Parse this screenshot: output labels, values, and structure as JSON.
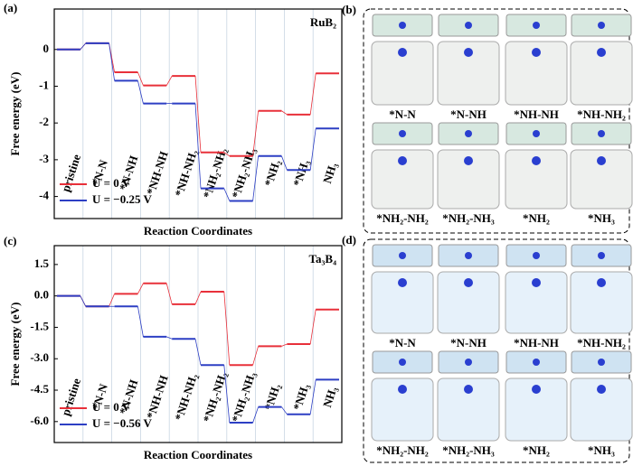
{
  "chart_data": [
    {
      "type": "step",
      "panel_label": "(a)",
      "annotation": "RuB₂",
      "xlabel": "Reaction Coordinates",
      "ylabel": "Free energy (eV)",
      "categories": [
        "pristine",
        "*N-N",
        "*N-NH",
        "*NH-NH",
        "*NH-NH₂",
        "*NH₂-NH₂",
        "*NH₂-NH₃",
        "*NH₂",
        "*NH₃",
        "NH₃"
      ],
      "series": [
        {
          "name": "U = 0 V",
          "color": "#e8303a",
          "values": [
            0,
            0.17,
            -0.62,
            -0.98,
            -0.72,
            -2.8,
            -2.9,
            -1.67,
            -1.77,
            -0.65
          ]
        },
        {
          "name": "U = −0.25 V",
          "color": "#2d3fc4",
          "values": [
            0,
            0.17,
            -0.85,
            -1.47,
            -1.47,
            -3.78,
            -4.12,
            -2.9,
            -3.28,
            -2.15
          ]
        }
      ],
      "ylim": [
        -4.6,
        1.1
      ],
      "yticks": [
        0,
        -1,
        -2,
        -3,
        -4
      ],
      "grid": true
    },
    {
      "type": "step",
      "panel_label": "(c)",
      "annotation": "Ta₃B₄",
      "xlabel": "Reaction Coordinates",
      "ylabel": "Free energy (eV)",
      "categories": [
        "pristine",
        "*N-N",
        "*N-NH",
        "*NH-NH",
        "*NH-NH₂",
        "*NH₂-NH₂",
        "*NH₂-NH₃",
        "*NH₂",
        "*NH₃",
        "NH₃"
      ],
      "series": [
        {
          "name": "U = 0 V",
          "color": "#e8303a",
          "values": [
            0,
            -0.5,
            0.1,
            0.6,
            -0.4,
            0.2,
            -3.3,
            -2.4,
            -2.3,
            -0.65
          ]
        },
        {
          "name": "U = −0.56 V",
          "color": "#2d3fc4",
          "values": [
            0,
            -0.5,
            -0.5,
            -1.95,
            -2.05,
            -3.3,
            -6.05,
            -5.3,
            -5.65,
            -4.0
          ]
        }
      ],
      "ylim": [
        -7.0,
        2.4
      ],
      "yticks": [
        1.5,
        {
          "value": 0,
          "label": "0.0"
        },
        -1.5,
        {
          "value": -3,
          "label": "-3.0"
        },
        -4.5,
        {
          "value": -6,
          "label": "-6.0"
        }
      ],
      "grid": true
    }
  ],
  "panels": [
    {
      "label": "(b)",
      "captions": [
        "*N-N",
        "*N-NH",
        "*NH-NH",
        "*NH-NH₂",
        "*NH₂-NH₂",
        "*NH₂-NH₃",
        "*NH₂",
        "*NH₃"
      ]
    },
    {
      "label": "(d)",
      "captions": [
        "*N-N",
        "*N-NH",
        "*NH-NH",
        "*NH-NH₂",
        "*NH₂-NH₂",
        "*NH₂-NH₃",
        "*NH₂",
        "*NH₃"
      ]
    }
  ]
}
